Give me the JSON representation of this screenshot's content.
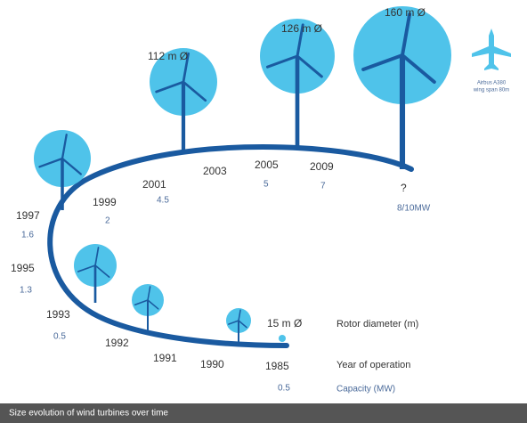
{
  "rotor_labels": [
    "160 m Ø",
    "126 m Ø",
    "112 m Ø",
    "15 m Ø"
  ],
  "years": [
    "1985",
    "1990",
    "1991",
    "1992",
    "1993",
    "1995",
    "1997",
    "1999",
    "2001",
    "2003",
    "2005",
    "2009",
    "?"
  ],
  "capacities": [
    "0.5",
    "0.5",
    "1.3",
    "1.6",
    "2",
    "4.5",
    "5",
    "7",
    "8/10MW"
  ],
  "legend": {
    "rotor": "Rotor diameter (m)",
    "year": "Year of operation",
    "capacity": "Capacity (MW)"
  },
  "airplane": {
    "name": "Airbus A380",
    "span": "wing span 80m"
  },
  "caption": "Size evolution of wind turbines over time"
}
